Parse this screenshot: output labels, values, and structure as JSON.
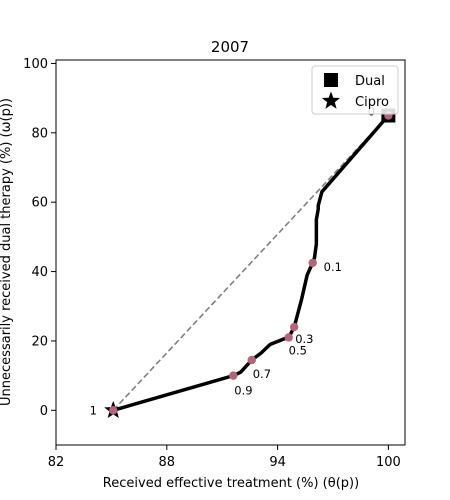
{
  "chart_data": {
    "type": "line",
    "title": "2007",
    "xlabel": "Received effective treatment (%) (θ(p))",
    "ylabel": "Unnecessarily received dual therapy (%) (ω(p))",
    "xlim": [
      82,
      100.9
    ],
    "ylim": [
      -10,
      101
    ],
    "xticks": [
      82,
      88,
      94,
      100
    ],
    "yticks": [
      0,
      20,
      40,
      60,
      80,
      100
    ],
    "grid": false,
    "legend_position": "top-right",
    "curve": {
      "color": "#000000",
      "x": [
        85.1,
        91.6,
        92.0,
        92.6,
        93.1,
        93.6,
        94.3,
        94.6,
        94.9,
        95.1,
        95.3,
        95.6,
        95.9,
        96.0,
        96.1,
        96.1,
        96.2,
        96.2,
        96.4,
        100
      ],
      "y": [
        0,
        10,
        11,
        14.5,
        16.5,
        19,
        20.5,
        21,
        24,
        28,
        32,
        39,
        42.5,
        44,
        48,
        55,
        58,
        59,
        63,
        85
      ]
    },
    "reference_line": {
      "color": "#808080",
      "style": "dashed",
      "x": [
        85.1,
        100
      ],
      "y": [
        0,
        85
      ]
    },
    "threshold_points": {
      "color": "#b5647a",
      "points": [
        {
          "x": 100,
          "y": 85,
          "label": "0"
        },
        {
          "x": 95.9,
          "y": 42.5,
          "label": "0.1"
        },
        {
          "x": 94.9,
          "y": 24,
          "label": "0.3"
        },
        {
          "x": 94.6,
          "y": 21,
          "label": "0.5"
        },
        {
          "x": 92.6,
          "y": 14.5,
          "label": "0.7"
        },
        {
          "x": 91.6,
          "y": 10,
          "label": "0.9"
        },
        {
          "x": 85.1,
          "y": 0,
          "label": "1"
        }
      ]
    },
    "series": [
      {
        "name": "Dual",
        "marker": "square",
        "color": "#000000",
        "x": 100,
        "y": 85
      },
      {
        "name": "Cipro",
        "marker": "star",
        "color": "#000000",
        "x": 85.1,
        "y": 0
      }
    ]
  }
}
